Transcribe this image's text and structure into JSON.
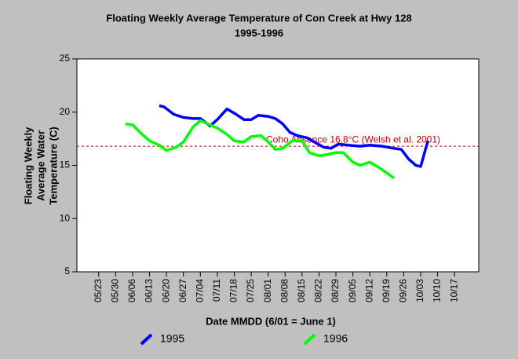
{
  "chart_data": {
    "type": "line",
    "title": "Floating Weekly Average Temperature of Con Creek at Hwy 128",
    "subtitle": "1995-1996",
    "y_label": [
      "Floating Weekly",
      "Average Water",
      "Temperature (C)"
    ],
    "x_label": "Date MMDD (6/01 = June 1)",
    "xlim": [
      "05/14",
      "10/27"
    ],
    "xticks": [
      "05/23",
      "05/30",
      "06/06",
      "06/13",
      "06/20",
      "06/27",
      "07/04",
      "07/11",
      "07/18",
      "07/25",
      "08/01",
      "08/08",
      "08/15",
      "08/22",
      "08/29",
      "09/05",
      "09/12",
      "09/19",
      "09/26",
      "10/03",
      "10/10",
      "10/17"
    ],
    "ylim": [
      5,
      25
    ],
    "yticks": [
      5,
      10,
      15,
      20,
      25
    ],
    "reference_line": {
      "value": 16.8,
      "label": "Coho Absence 16.8°C (Welsh et al. 2001)",
      "color": "#cc0000"
    },
    "series": [
      {
        "name": "1995",
        "color": "#0000ff",
        "x": [
          "06/17",
          "06/19",
          "06/23",
          "06/27",
          "07/01",
          "07/04",
          "07/08",
          "07/11",
          "07/15",
          "07/18",
          "07/22",
          "07/25",
          "07/28",
          "08/01",
          "08/04",
          "08/07",
          "08/10",
          "08/13",
          "08/17",
          "08/20",
          "08/24",
          "08/27",
          "08/30",
          "09/03",
          "09/08",
          "09/12",
          "09/17",
          "09/22",
          "09/25",
          "09/28",
          "10/01",
          "10/03",
          "10/06"
        ],
        "values": [
          20.6,
          20.5,
          19.8,
          19.5,
          19.4,
          19.4,
          18.7,
          19.3,
          20.3,
          19.9,
          19.3,
          19.3,
          19.7,
          19.6,
          19.4,
          18.9,
          18.1,
          17.8,
          17.6,
          17.2,
          16.7,
          16.6,
          17.0,
          16.9,
          16.8,
          16.9,
          16.8,
          16.6,
          16.5,
          15.6,
          15.0,
          14.9,
          17.3
        ]
      },
      {
        "name": "1996",
        "color": "#00ff00",
        "x": [
          "06/03",
          "06/06",
          "06/10",
          "06/13",
          "06/17",
          "06/20",
          "06/24",
          "06/27",
          "07/01",
          "07/04",
          "07/07",
          "07/11",
          "07/15",
          "07/18",
          "07/22",
          "07/25",
          "07/29",
          "08/01",
          "08/04",
          "08/07",
          "08/11",
          "08/15",
          "08/18",
          "08/22",
          "08/25",
          "08/29",
          "09/01",
          "09/05",
          "09/08",
          "09/12",
          "09/15",
          "09/19",
          "09/22"
        ],
        "values": [
          18.9,
          18.8,
          17.9,
          17.3,
          16.9,
          16.4,
          16.7,
          17.2,
          18.6,
          19.2,
          18.9,
          18.5,
          17.9,
          17.3,
          17.2,
          17.7,
          17.8,
          17.2,
          16.5,
          16.6,
          17.3,
          17.3,
          16.2,
          15.9,
          16.0,
          16.2,
          16.2,
          15.3,
          15.0,
          15.3,
          14.9,
          14.3,
          13.8
        ]
      }
    ]
  }
}
